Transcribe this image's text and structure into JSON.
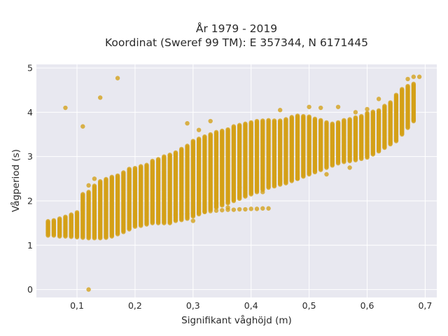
{
  "chart_data": {
    "type": "scatter",
    "title": "År 1979 - 2019",
    "subtitle": "Koordinat (Sweref 99 TM): E 357344, N 6171445",
    "xlabel": "Signifikant våghöjd (m)",
    "ylabel": "Vågperiod (s)",
    "xlim": [
      0.03,
      0.72
    ],
    "ylim": [
      -0.18,
      5.08
    ],
    "x_ticks": [
      0.1,
      0.2,
      0.3,
      0.4,
      0.5,
      0.6,
      0.7
    ],
    "x_tick_labels": [
      "0,1",
      "0,2",
      "0,3",
      "0,4",
      "0,5",
      "0,6",
      "0,7"
    ],
    "y_ticks": [
      0,
      1,
      2,
      3,
      4,
      5
    ],
    "y_tick_labels": [
      "0",
      "1",
      "2",
      "3",
      "4",
      "5"
    ],
    "grid": true,
    "marker_color": "#D4A017",
    "plot_background": "#E8E8F0",
    "columns_x": [
      0.05,
      0.06,
      0.07,
      0.08,
      0.09,
      0.1,
      0.11,
      0.12,
      0.13,
      0.14,
      0.15,
      0.16,
      0.17,
      0.18,
      0.19,
      0.2,
      0.21,
      0.22,
      0.23,
      0.24,
      0.25,
      0.26,
      0.27,
      0.28,
      0.29,
      0.3,
      0.31,
      0.32,
      0.33,
      0.34,
      0.35,
      0.36,
      0.37,
      0.38,
      0.39,
      0.4,
      0.41,
      0.42,
      0.43,
      0.44,
      0.45,
      0.46,
      0.47,
      0.48,
      0.49,
      0.5,
      0.51,
      0.52,
      0.53,
      0.54,
      0.55,
      0.56,
      0.57,
      0.58,
      0.59,
      0.6,
      0.61,
      0.62,
      0.63,
      0.64,
      0.65,
      0.66,
      0.67,
      0.68
    ],
    "columns_ymin": [
      1.22,
      1.22,
      1.2,
      1.2,
      1.19,
      1.18,
      1.17,
      1.16,
      1.16,
      1.16,
      1.17,
      1.2,
      1.25,
      1.3,
      1.36,
      1.42,
      1.44,
      1.47,
      1.5,
      1.5,
      1.5,
      1.52,
      1.55,
      1.57,
      1.6,
      1.65,
      1.7,
      1.75,
      1.8,
      1.85,
      1.9,
      1.95,
      2.0,
      2.05,
      2.1,
      2.15,
      2.2,
      2.25,
      2.3,
      2.33,
      2.37,
      2.4,
      2.45,
      2.5,
      2.55,
      2.6,
      2.65,
      2.7,
      2.75,
      2.8,
      2.85,
      2.88,
      2.9,
      2.92,
      2.95,
      2.98,
      3.05,
      3.12,
      3.2,
      3.28,
      3.35,
      3.5,
      3.65,
      3.8
    ],
    "columns_ymax": [
      1.55,
      1.57,
      1.6,
      1.65,
      1.7,
      1.75,
      2.15,
      2.2,
      2.35,
      2.45,
      2.5,
      2.55,
      2.58,
      2.65,
      2.72,
      2.75,
      2.78,
      2.82,
      2.9,
      2.95,
      3.0,
      3.05,
      3.1,
      3.17,
      3.25,
      3.35,
      3.4,
      3.45,
      3.5,
      3.55,
      3.58,
      3.62,
      3.68,
      3.72,
      3.75,
      3.78,
      3.8,
      3.82,
      3.82,
      3.82,
      3.82,
      3.85,
      3.9,
      3.92,
      3.92,
      3.9,
      3.85,
      3.82,
      3.78,
      3.75,
      3.78,
      3.82,
      3.85,
      3.88,
      3.92,
      3.98,
      4.02,
      4.05,
      4.15,
      4.22,
      4.4,
      4.52,
      4.6,
      4.65
    ],
    "lower_branch_x": [
      0.27,
      0.28,
      0.29,
      0.3,
      0.31,
      0.32,
      0.33,
      0.34,
      0.35,
      0.36,
      0.37,
      0.38,
      0.39,
      0.4,
      0.41,
      0.42,
      0.43
    ],
    "lower_branch_y": [
      1.68,
      1.7,
      1.71,
      1.73,
      1.74,
      1.76,
      1.77,
      1.78,
      1.79,
      1.8,
      1.8,
      1.81,
      1.81,
      1.82,
      1.82,
      1.83,
      1.83
    ],
    "outliers": [
      {
        "x": 0.08,
        "y": 4.1
      },
      {
        "x": 0.11,
        "y": 3.68
      },
      {
        "x": 0.14,
        "y": 4.33
      },
      {
        "x": 0.17,
        "y": 4.77
      },
      {
        "x": 0.12,
        "y": 0.0
      },
      {
        "x": 0.12,
        "y": 2.35
      },
      {
        "x": 0.13,
        "y": 2.5
      },
      {
        "x": 0.29,
        "y": 3.75
      },
      {
        "x": 0.31,
        "y": 3.6
      },
      {
        "x": 0.33,
        "y": 3.8
      },
      {
        "x": 0.45,
        "y": 4.05
      },
      {
        "x": 0.5,
        "y": 4.12
      },
      {
        "x": 0.52,
        "y": 4.1
      },
      {
        "x": 0.55,
        "y": 4.12
      },
      {
        "x": 0.58,
        "y": 4.0
      },
      {
        "x": 0.6,
        "y": 4.07
      },
      {
        "x": 0.62,
        "y": 4.3
      },
      {
        "x": 0.67,
        "y": 4.75
      },
      {
        "x": 0.68,
        "y": 4.8
      },
      {
        "x": 0.69,
        "y": 4.8
      },
      {
        "x": 0.34,
        "y": 1.95
      },
      {
        "x": 0.36,
        "y": 1.85
      },
      {
        "x": 0.3,
        "y": 1.55
      },
      {
        "x": 0.26,
        "y": 1.5
      },
      {
        "x": 0.45,
        "y": 2.45
      },
      {
        "x": 0.48,
        "y": 2.5
      },
      {
        "x": 0.38,
        "y": 2.3
      },
      {
        "x": 0.68,
        "y": 3.85
      },
      {
        "x": 0.53,
        "y": 2.6
      },
      {
        "x": 0.57,
        "y": 2.75
      },
      {
        "x": 0.42,
        "y": 2.2
      }
    ]
  }
}
